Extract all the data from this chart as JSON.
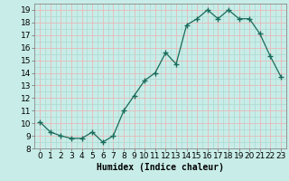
{
  "x": [
    0,
    1,
    2,
    3,
    4,
    5,
    6,
    7,
    8,
    9,
    10,
    11,
    12,
    13,
    14,
    15,
    16,
    17,
    18,
    19,
    20,
    21,
    22,
    23
  ],
  "y": [
    10.1,
    9.3,
    9.0,
    8.8,
    8.8,
    9.3,
    8.5,
    9.0,
    11.0,
    12.2,
    13.4,
    14.0,
    15.6,
    14.7,
    17.8,
    18.3,
    19.0,
    18.3,
    19.0,
    18.3,
    18.3,
    17.1,
    15.3,
    13.7
  ],
  "xlabel": "Humidex (Indice chaleur)",
  "line_color": "#1a6b5a",
  "marker": "+",
  "marker_size": 4,
  "bg_color": "#c8ede8",
  "grid_minor_color": "#aad8d0",
  "grid_major_color": "#e8b8b8",
  "xlim": [
    -0.5,
    23.5
  ],
  "ylim": [
    8,
    19.5
  ],
  "yticks": [
    8,
    9,
    10,
    11,
    12,
    13,
    14,
    15,
    16,
    17,
    18,
    19
  ],
  "xticks": [
    0,
    1,
    2,
    3,
    4,
    5,
    6,
    7,
    8,
    9,
    10,
    11,
    12,
    13,
    14,
    15,
    16,
    17,
    18,
    19,
    20,
    21,
    22,
    23
  ],
  "xlabel_fontsize": 7,
  "tick_fontsize": 6.5
}
